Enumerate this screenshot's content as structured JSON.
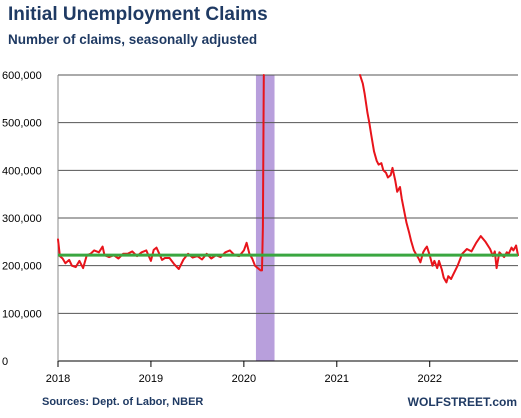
{
  "title": "Initial Unemployment Claims",
  "subtitle": "Number of claims, seasonally adjusted",
  "source": "Sources: Dept. of Labor, NBER",
  "brand": "WOLFSTREET.com",
  "colors": {
    "line": "#e8141b",
    "reference": "#3aa640",
    "recession": "#b89fdc",
    "grid": "#555555",
    "text": "#1f3a63"
  },
  "chart_data": {
    "type": "line",
    "xlabel": "",
    "ylabel": "",
    "ylim": [
      0,
      600000
    ],
    "xlim": [
      2018.0,
      2022.95
    ],
    "grid": true,
    "y_ticks": [
      0,
      100000,
      200000,
      300000,
      400000,
      500000,
      600000
    ],
    "y_tick_labels": [
      "0",
      "100,000",
      "200,000",
      "300,000",
      "400,000",
      "500,000",
      "600,000"
    ],
    "x_ticks": [
      2018,
      2019,
      2020,
      2021,
      2022
    ],
    "x_tick_labels": [
      "2018",
      "2019",
      "2020",
      "2021",
      "2022"
    ],
    "recession_band": [
      2020.13,
      2020.33
    ],
    "reference_line": 222000,
    "series": [
      {
        "x": [
          2018.0,
          2018.02,
          2018.05,
          2018.08,
          2018.12,
          2018.15,
          2018.19,
          2018.23,
          2018.27,
          2018.31,
          2018.35,
          2018.39,
          2018.44,
          2018.48,
          2018.5,
          2018.55,
          2018.6,
          2018.65,
          2018.7,
          2018.75,
          2018.8,
          2018.85,
          2018.9,
          2018.95,
          2019.0,
          2019.03,
          2019.06,
          2019.09,
          2019.12,
          2019.15,
          2019.2,
          2019.25,
          2019.3,
          2019.35,
          2019.4,
          2019.45,
          2019.5,
          2019.55,
          2019.6,
          2019.65,
          2019.7,
          2019.75,
          2019.8,
          2019.85,
          2019.9,
          2019.95,
          2020.0,
          2020.03,
          2020.06,
          2020.09,
          2020.12,
          2020.15,
          2020.18,
          2020.195,
          2020.205,
          2020.215
        ],
        "y": [
          255000,
          220000,
          215000,
          205000,
          212000,
          200000,
          197000,
          210000,
          195000,
          222000,
          225000,
          232000,
          228000,
          240000,
          222000,
          218000,
          222000,
          215000,
          225000,
          225000,
          230000,
          220000,
          228000,
          232000,
          210000,
          233000,
          238000,
          225000,
          212000,
          216000,
          216000,
          203000,
          193000,
          213000,
          225000,
          217000,
          220000,
          213000,
          225000,
          215000,
          222000,
          218000,
          228000,
          232000,
          222000,
          220000,
          232000,
          248000,
          225000,
          215000,
          200000,
          195000,
          190000,
          190000,
          282000,
          600000
        ]
      },
      {
        "x": [
          2021.25,
          2021.28,
          2021.3,
          2021.33,
          2021.35,
          2021.37,
          2021.4,
          2021.43,
          2021.45,
          2021.48,
          2021.5,
          2021.53,
          2021.55,
          2021.58,
          2021.6,
          2021.63,
          2021.65,
          2021.68,
          2021.7,
          2021.73,
          2021.75,
          2021.78,
          2021.8,
          2021.83,
          2021.85,
          2021.88,
          2021.9,
          2021.93,
          2021.95,
          2021.97,
          2022.0,
          2022.03,
          2022.05,
          2022.08,
          2022.1,
          2022.13,
          2022.15,
          2022.18,
          2022.2,
          2022.23,
          2022.25,
          2022.3,
          2022.35,
          2022.4,
          2022.45,
          2022.5,
          2022.55,
          2022.6,
          2022.65,
          2022.68,
          2022.7,
          2022.72,
          2022.75,
          2022.78,
          2022.8,
          2022.83,
          2022.85,
          2022.88,
          2022.9,
          2022.93
        ],
        "y": [
          600000,
          582000,
          560000,
          520000,
          500000,
          475000,
          440000,
          420000,
          412000,
          415000,
          400000,
          395000,
          385000,
          390000,
          405000,
          378000,
          355000,
          365000,
          340000,
          310000,
          290000,
          268000,
          252000,
          232000,
          225000,
          215000,
          207000,
          228000,
          235000,
          240000,
          222000,
          200000,
          210000,
          195000,
          210000,
          192000,
          175000,
          165000,
          178000,
          172000,
          180000,
          200000,
          225000,
          235000,
          230000,
          248000,
          262000,
          250000,
          235000,
          220000,
          230000,
          195000,
          228000,
          222000,
          218000,
          228000,
          225000,
          238000,
          232000,
          242000
        ]
      },
      {
        "x": [
          2022.93,
          2022.95
        ],
        "y": [
          242000,
          222000
        ]
      }
    ]
  }
}
